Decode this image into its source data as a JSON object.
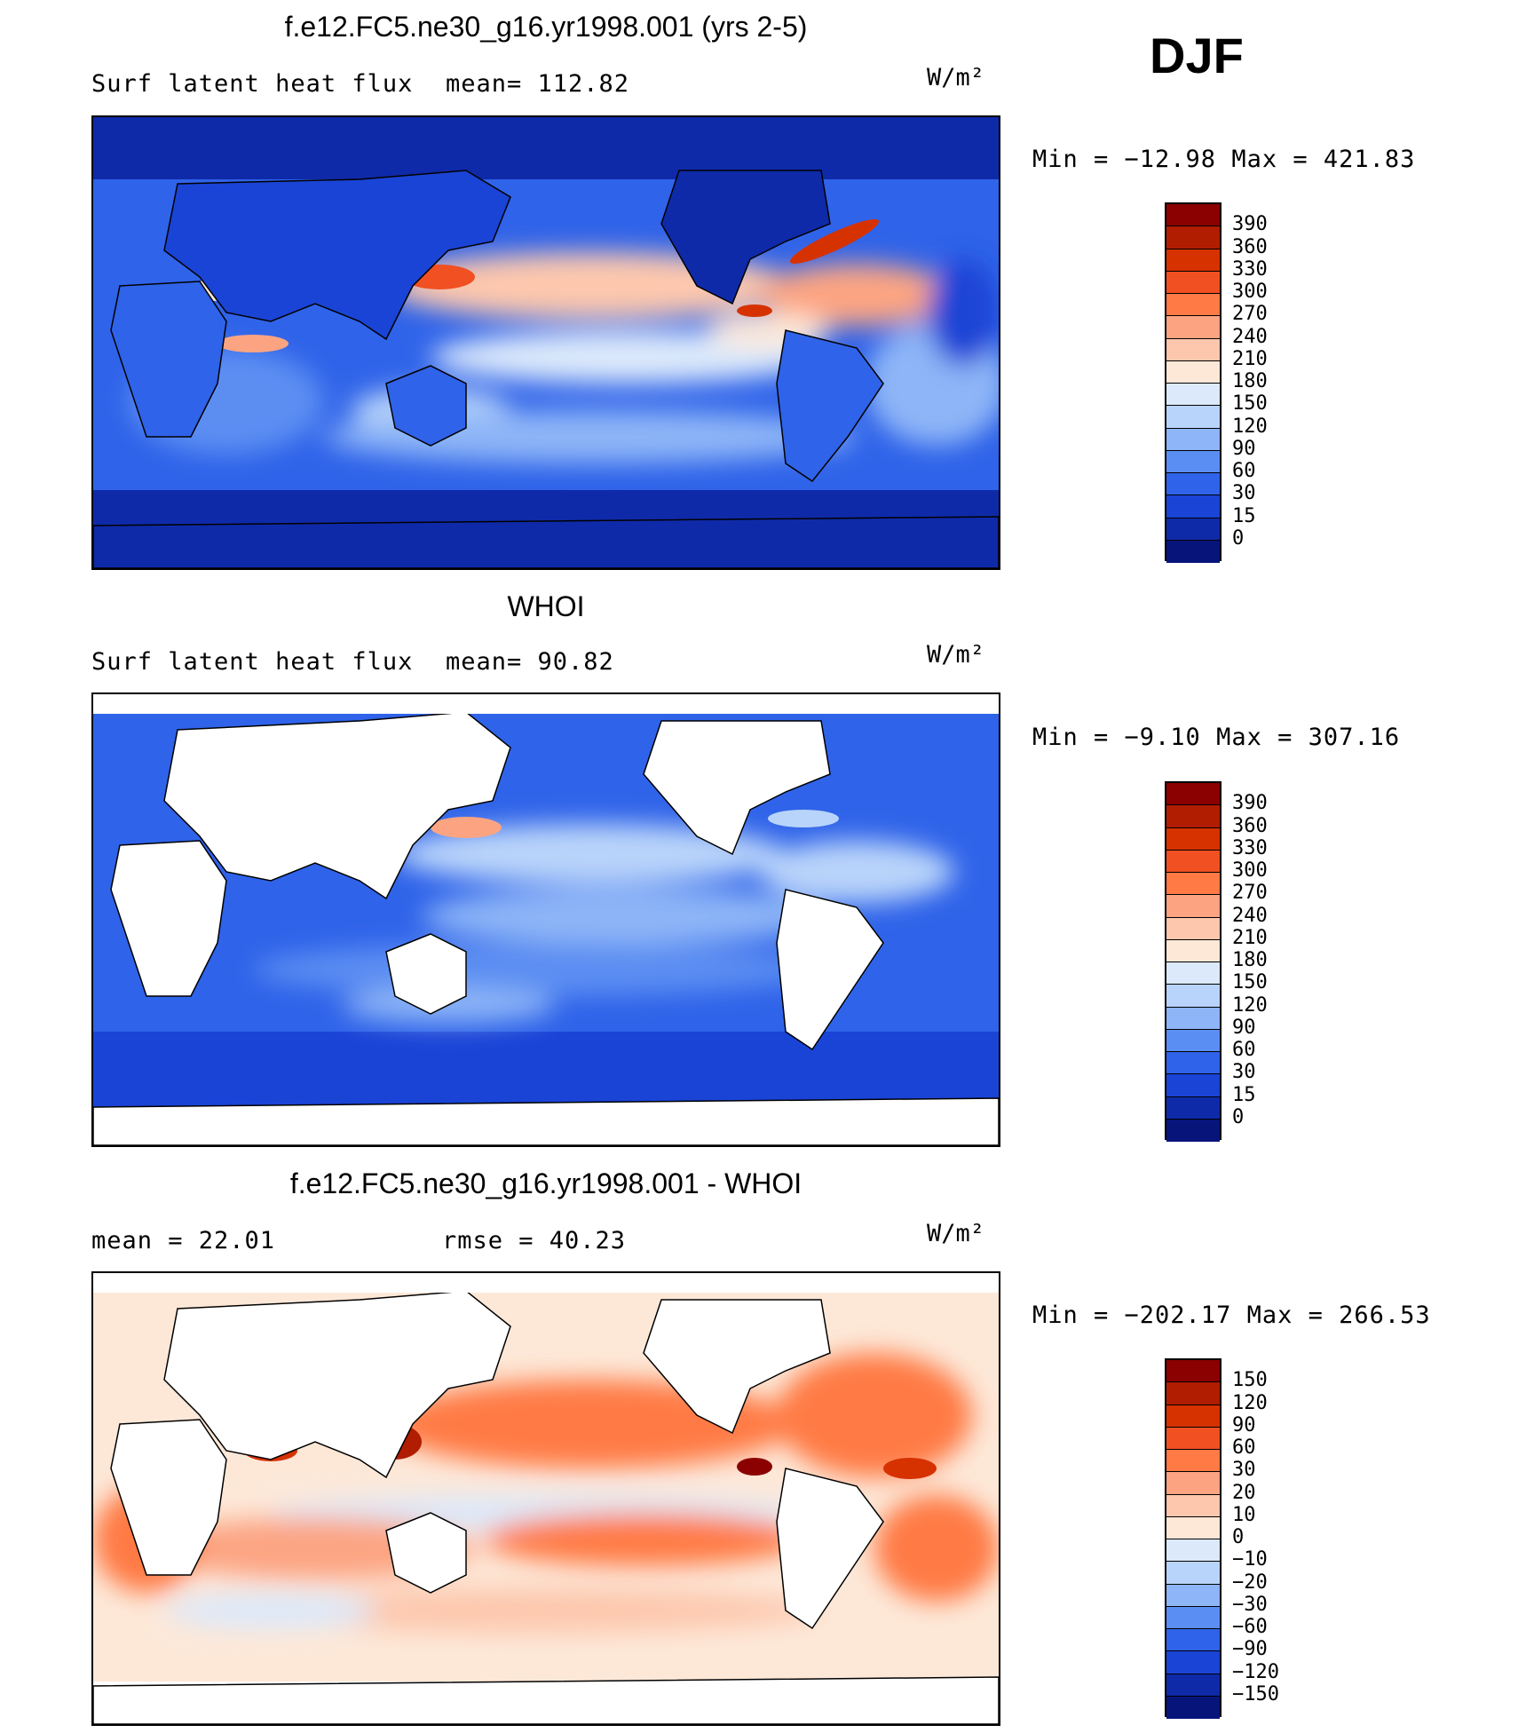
{
  "season": "DJF",
  "chart_data": [
    {
      "type": "heatmap",
      "title": "f.e12.FC5.ne30_g16.yr1998.001 (yrs 2-5)",
      "left_label": "Surf latent heat flux",
      "center_label": "mean=  112.82",
      "units": "W/m²",
      "minmax": "Min = −12.98 Max = 421.83",
      "colorbar_levels": [
        "390",
        "360",
        "330",
        "300",
        "270",
        "240",
        "210",
        "180",
        "150",
        "120",
        "90",
        "60",
        "30",
        "15",
        "0"
      ],
      "colorbar_colors": [
        "#8b0000",
        "#b01d00",
        "#d63200",
        "#f05022",
        "#ff7a45",
        "#fca482",
        "#fdc7ad",
        "#fde8d8",
        "#dbe9fb",
        "#b9d4fa",
        "#8db5f7",
        "#5b8ef2",
        "#2f63e9",
        "#1a44d6",
        "#0f2aa8",
        "#07157a"
      ],
      "mean": 112.82,
      "min": -12.98,
      "max": 421.83
    },
    {
      "type": "heatmap",
      "title": "WHOI",
      "left_label": "Surf latent heat flux",
      "center_label": "mean=   90.82",
      "units": "W/m²",
      "minmax": "Min =  −9.10 Max = 307.16",
      "colorbar_levels": [
        "390",
        "360",
        "330",
        "300",
        "270",
        "240",
        "210",
        "180",
        "150",
        "120",
        "90",
        "60",
        "30",
        "15",
        "0"
      ],
      "colorbar_colors": [
        "#8b0000",
        "#b01d00",
        "#d63200",
        "#f05022",
        "#ff7a45",
        "#fca482",
        "#fdc7ad",
        "#fde8d8",
        "#dbe9fb",
        "#b9d4fa",
        "#8db5f7",
        "#5b8ef2",
        "#2f63e9",
        "#1a44d6",
        "#0f2aa8",
        "#07157a"
      ],
      "mean": 90.82,
      "min": -9.1,
      "max": 307.16
    },
    {
      "type": "heatmap",
      "title": "f.e12.FC5.ne30_g16.yr1998.001 - WHOI",
      "left_label": "mean =    22.01",
      "center_label": "rmse =    40.23",
      "units": "W/m²",
      "minmax": "Min = −202.17 Max = 266.53",
      "colorbar_levels": [
        "150",
        "120",
        "90",
        "60",
        "30",
        "20",
        "10",
        "0",
        "−10",
        "−20",
        "−30",
        "−60",
        "−90",
        "−120",
        "−150"
      ],
      "colorbar_colors": [
        "#8b0000",
        "#b01d00",
        "#d63200",
        "#f05022",
        "#ff7a45",
        "#fca482",
        "#fdc7ad",
        "#fde8d8",
        "#dbe9fb",
        "#b9d4fa",
        "#8db5f7",
        "#5b8ef2",
        "#2f63e9",
        "#1a44d6",
        "#0f2aa8",
        "#07157a"
      ],
      "mean": 22.01,
      "rmse": 40.23,
      "min": -202.17,
      "max": 266.53
    }
  ]
}
